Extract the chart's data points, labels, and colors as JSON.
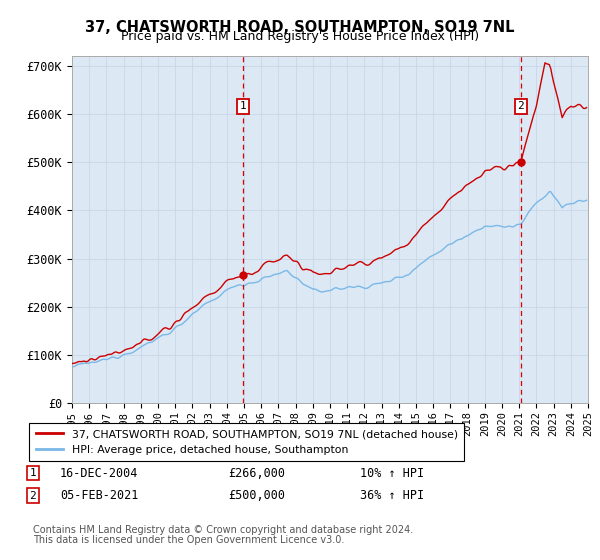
{
  "title": "37, CHATSWORTH ROAD, SOUTHAMPTON, SO19 7NL",
  "subtitle": "Price paid vs. HM Land Registry's House Price Index (HPI)",
  "plot_bg_color": "#dce9f5",
  "ylim": [
    0,
    720000
  ],
  "yticks": [
    0,
    100000,
    200000,
    300000,
    400000,
    500000,
    600000,
    700000
  ],
  "ytick_labels": [
    "£0",
    "£100K",
    "£200K",
    "£300K",
    "£400K",
    "£500K",
    "£600K",
    "£700K"
  ],
  "sale1_year": 2004.96,
  "sale1_price": 266000,
  "sale2_year": 2021.09,
  "sale2_price": 500000,
  "hpi_color": "#7ab8e8",
  "price_color": "#cc0000",
  "vline_color": "#dd0000",
  "legend_label1": "37, CHATSWORTH ROAD, SOUTHAMPTON, SO19 7NL (detached house)",
  "legend_label2": "HPI: Average price, detached house, Southampton",
  "footnote3": "Contains HM Land Registry data © Crown copyright and database right 2024.",
  "footnote4": "This data is licensed under the Open Government Licence v3.0."
}
